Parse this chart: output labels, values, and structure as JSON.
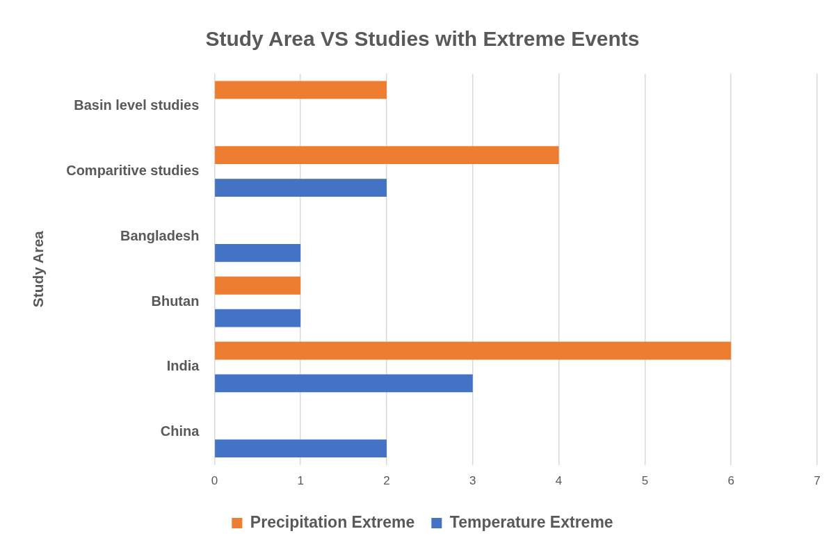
{
  "chart_data": {
    "type": "bar",
    "orientation": "horizontal",
    "title": "Study Area VS Studies with Extreme Events",
    "ylabel": "Study Area",
    "categories": [
      "Basin level studies",
      "Comparitive studies",
      "Bangladesh",
      "Bhutan",
      "India",
      "China"
    ],
    "series": [
      {
        "name": "Precipitation Extreme",
        "color": "#ed7d31",
        "values": [
          2,
          4,
          null,
          1,
          6,
          null
        ]
      },
      {
        "name": "Temperature Extreme",
        "color": "#4472c4",
        "values": [
          null,
          2,
          1,
          1,
          3,
          2
        ]
      }
    ],
    "xlim": [
      0,
      7
    ],
    "xticks": [
      0,
      1,
      2,
      3,
      4,
      5,
      6,
      7
    ],
    "grid": "x",
    "legend": "bottom"
  }
}
